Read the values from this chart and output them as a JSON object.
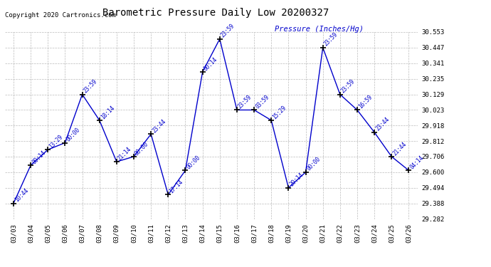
{
  "title": "Barometric Pressure Daily Low 20200327",
  "ylabel": "Pressure (Inches/Hg)",
  "copyright": "Copyright 2020 Cartronics.com",
  "dates": [
    "03/03",
    "03/04",
    "03/05",
    "03/06",
    "03/07",
    "03/08",
    "03/09",
    "03/10",
    "03/11",
    "03/12",
    "03/13",
    "03/14",
    "03/15",
    "03/16",
    "03/17",
    "03/18",
    "03/19",
    "03/20",
    "03/21",
    "03/22",
    "03/23",
    "03/24",
    "03/25",
    "03/26"
  ],
  "values": [
    29.388,
    29.647,
    29.753,
    29.8,
    30.129,
    29.953,
    29.671,
    29.706,
    29.859,
    29.447,
    29.612,
    30.282,
    30.506,
    30.023,
    30.023,
    29.953,
    29.494,
    29.6,
    30.447,
    30.129,
    30.023,
    29.871,
    29.706,
    29.612
  ],
  "time_labels": [
    "10:44",
    "00:14",
    "13:29",
    "00:00",
    "23:59",
    "18:14",
    "21:14",
    "00:00",
    "23:44",
    "17:14",
    "00:00",
    "00:14",
    "23:59",
    "23:59",
    "03:59",
    "15:29",
    "20:14",
    "00:00",
    "23:59",
    "23:59",
    "16:59",
    "23:44",
    "21:44",
    "04:14"
  ],
  "ylim_min": 29.282,
  "ylim_max": 30.553,
  "yticks": [
    29.282,
    29.388,
    29.494,
    29.6,
    29.706,
    29.812,
    29.918,
    30.023,
    30.129,
    30.235,
    30.341,
    30.447,
    30.553
  ],
  "line_color": "#0000CC",
  "marker_color": "#000000",
  "label_color": "#0000CC",
  "title_color": "#000000",
  "background_color": "#ffffff",
  "grid_color": "#aaaaaa",
  "ylabel_color": "#0000CC",
  "copyright_color": "#000000",
  "fig_width": 6.9,
  "fig_height": 3.75,
  "dpi": 100
}
